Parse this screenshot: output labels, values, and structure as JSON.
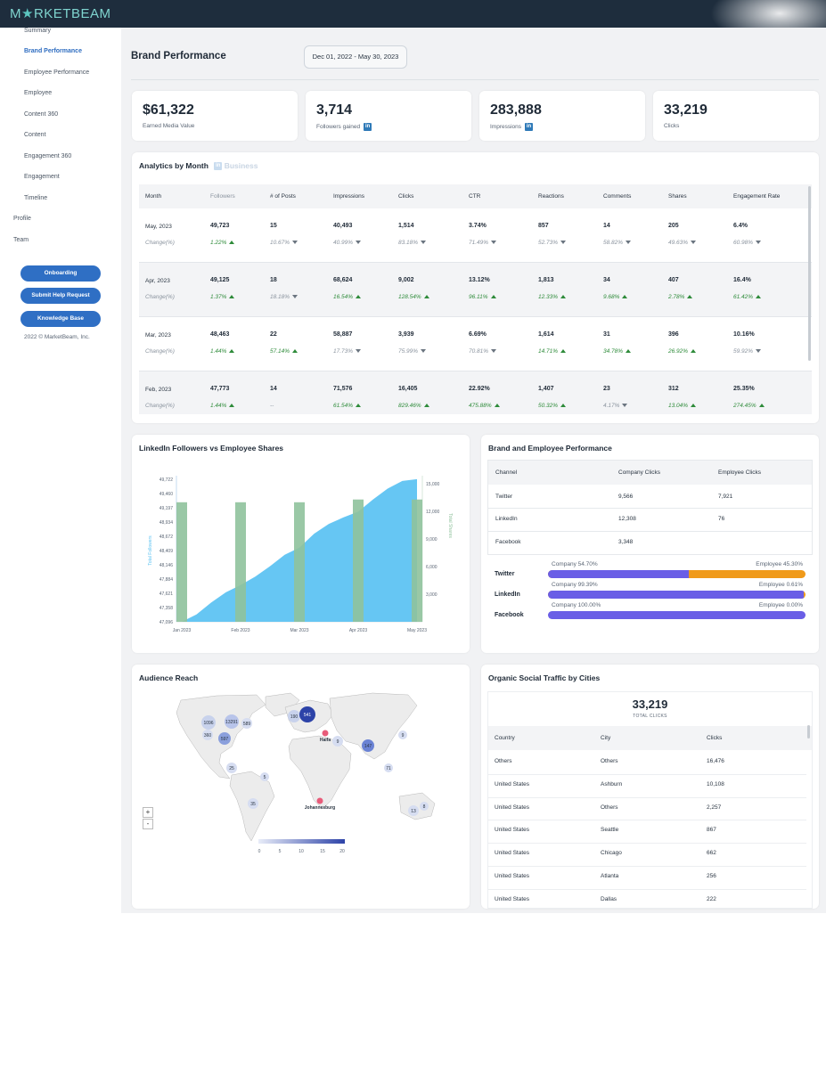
{
  "brand": {
    "logo_left": "M",
    "logo_star": "★",
    "logo_right": "RKETBEAM"
  },
  "sidebar": {
    "items": [
      {
        "label": "Summary"
      },
      {
        "label": "Brand Performance"
      },
      {
        "label": "Employee Performance"
      },
      {
        "label": "Employee"
      },
      {
        "label": "Content 360"
      },
      {
        "label": "Content"
      },
      {
        "label": "Engagement 360"
      },
      {
        "label": "Engagement"
      },
      {
        "label": "Timeline"
      },
      {
        "label": "Profile"
      },
      {
        "label": "Team"
      }
    ],
    "buttons": [
      "Onboarding",
      "Submit Help Request",
      "Knowledge Base"
    ],
    "copyright": "2022 © MarketBeam, Inc."
  },
  "header": {
    "title": "Brand Performance",
    "date_range": "Dec 01, 2022 - May 30, 2023"
  },
  "kpis": [
    {
      "value": "$61,322",
      "label": "Earned Media Value",
      "linkedin": false
    },
    {
      "value": "3,714",
      "label": "Followers gained",
      "linkedin": true
    },
    {
      "value": "283,888",
      "label": "Impressions",
      "linkedin": true
    },
    {
      "value": "33,219",
      "label": "Clicks",
      "linkedin": false
    }
  ],
  "analytics": {
    "title": "Analytics by Month",
    "title_faded": "Business",
    "columns": [
      "Month",
      "Followers",
      "# of Posts",
      "Impressions",
      "Clicks",
      "CTR",
      "Reactions",
      "Comments",
      "Shares",
      "Engagement Rate"
    ],
    "change_label": "Change(%)",
    "rows": [
      {
        "month": "May, 2023",
        "values": [
          "49,723",
          "15",
          "40,493",
          "1,514",
          "3.74%",
          "857",
          "14",
          "205",
          "6.4%"
        ],
        "changes": [
          [
            "1.22%",
            "up"
          ],
          [
            "10.67%",
            "down"
          ],
          [
            "40.99%",
            "down"
          ],
          [
            "83.18%",
            "down"
          ],
          [
            "71.49%",
            "down"
          ],
          [
            "52.73%",
            "down"
          ],
          [
            "58.82%",
            "down"
          ],
          [
            "49.63%",
            "down"
          ],
          [
            "60.98%",
            "down"
          ]
        ]
      },
      {
        "month": "Apr, 2023",
        "values": [
          "49,125",
          "18",
          "68,624",
          "9,002",
          "13.12%",
          "1,813",
          "34",
          "407",
          "16.4%"
        ],
        "changes": [
          [
            "1.37%",
            "up"
          ],
          [
            "18.18%",
            "down"
          ],
          [
            "16.54%",
            "up"
          ],
          [
            "128.54%",
            "up"
          ],
          [
            "96.11%",
            "up"
          ],
          [
            "12.33%",
            "up"
          ],
          [
            "9.68%",
            "up"
          ],
          [
            "2.78%",
            "up"
          ],
          [
            "61.42%",
            "up"
          ]
        ]
      },
      {
        "month": "Mar, 2023",
        "values": [
          "48,463",
          "22",
          "58,887",
          "3,939",
          "6.69%",
          "1,614",
          "31",
          "396",
          "10.16%"
        ],
        "changes": [
          [
            "1.44%",
            "up"
          ],
          [
            "57.14%",
            "up"
          ],
          [
            "17.73%",
            "down"
          ],
          [
            "75.99%",
            "down"
          ],
          [
            "70.81%",
            "down"
          ],
          [
            "14.71%",
            "up"
          ],
          [
            "34.78%",
            "up"
          ],
          [
            "26.92%",
            "up"
          ],
          [
            "59.92%",
            "down"
          ]
        ]
      },
      {
        "month": "Feb, 2023",
        "values": [
          "47,773",
          "14",
          "71,576",
          "16,405",
          "22.92%",
          "1,407",
          "23",
          "312",
          "25.35%"
        ],
        "changes": [
          [
            "1.44%",
            "up"
          ],
          [
            "--",
            "none"
          ],
          [
            "61.54%",
            "up"
          ],
          [
            "829.46%",
            "up"
          ],
          [
            "475.88%",
            "up"
          ],
          [
            "50.32%",
            "up"
          ],
          [
            "4.17%",
            "down"
          ],
          [
            "13.04%",
            "up"
          ],
          [
            "274.45%",
            "up"
          ]
        ]
      }
    ]
  },
  "followers_chart": {
    "title": "LinkedIn Followers vs Employee Shares"
  },
  "chart_data": {
    "type": "bar",
    "title": "LinkedIn Followers vs Employee Shares",
    "categories": [
      "Jan 2023",
      "Feb 2023",
      "Mar 2023",
      "Apr 2023",
      "May 2023"
    ],
    "ylabel": "Total Followers",
    "y2label": "Total Shares",
    "y_ticks": [
      "49,722",
      "49,460",
      "49,197",
      "48,934",
      "48,672",
      "48,409",
      "48,146",
      "47,884",
      "47,621",
      "47,358",
      "47,096"
    ],
    "y2_ticks": [
      "15,000",
      "12,000",
      "9,000",
      "6,000",
      "3,000"
    ],
    "ylim": [
      47096,
      49722
    ],
    "y2lim": [
      0,
      15500
    ],
    "series": [
      {
        "name": "Total Followers",
        "type": "area",
        "color": "#5ec3f2",
        "x": [
          0,
          0.25,
          0.5,
          0.75,
          1.0,
          1.25,
          1.5,
          1.75,
          2.0,
          2.25,
          2.5,
          2.75,
          3.0,
          3.25,
          3.5,
          3.75,
          4.0
        ],
        "values": [
          47096,
          47230,
          47450,
          47640,
          47773,
          47930,
          48120,
          48330,
          48463,
          48720,
          48900,
          49020,
          49125,
          49350,
          49550,
          49690,
          49723
        ]
      },
      {
        "name": "Total Shares",
        "type": "bar",
        "color": "#8fc29c",
        "values": [
          13000,
          13000,
          13000,
          13300,
          13300
        ]
      }
    ]
  },
  "brand_perf": {
    "title": "Brand and Employee Performance",
    "columns": [
      "Channel",
      "Company Clicks",
      "Employee Clicks"
    ],
    "rows": [
      [
        "Twitter",
        "9,566",
        "7,921"
      ],
      [
        "LinkedIn",
        "12,308",
        "76"
      ],
      [
        "Facebook",
        "3,348",
        ""
      ]
    ],
    "bars": [
      {
        "channel": "Twitter",
        "company_label": "Company 54.70%",
        "employee_label": "Employee 45.30%",
        "company_pct": 54.7
      },
      {
        "channel": "LinkedIn",
        "company_label": "Company 99.39%",
        "employee_label": "Employee 0.61%",
        "company_pct": 99.39
      },
      {
        "channel": "Facebook",
        "company_label": "Company 100.00%",
        "employee_label": "Employee 0.00%",
        "company_pct": 100.0
      }
    ],
    "company_color": "#6a5ee6",
    "employee_color": "#f09a1a"
  },
  "audience": {
    "title": "Audience Reach",
    "clusters": [
      "1096",
      "13291",
      "589",
      "360",
      "597",
      "190",
      "541",
      "9",
      "9",
      "147",
      "71",
      "25",
      "5",
      "35",
      "13",
      "8"
    ],
    "cities": [
      "Haifa",
      "Johannesburg"
    ],
    "legend": [
      "0",
      "5",
      "10",
      "15",
      "20"
    ],
    "zoom_in": "+",
    "zoom_out": "-"
  },
  "cities_table": {
    "title": "Organic Social Traffic by Cities",
    "total": "33,219",
    "total_label": "TOTAL CLICKS",
    "columns": [
      "Country",
      "City",
      "Clicks"
    ],
    "rows": [
      [
        "Others",
        "Others",
        "16,476"
      ],
      [
        "United States",
        "Ashburn",
        "10,108"
      ],
      [
        "United States",
        "Others",
        "2,257"
      ],
      [
        "United States",
        "Seattle",
        "867"
      ],
      [
        "United States",
        "Chicago",
        "662"
      ],
      [
        "United States",
        "Atlanta",
        "256"
      ],
      [
        "United States",
        "Dallas",
        "222"
      ]
    ]
  }
}
